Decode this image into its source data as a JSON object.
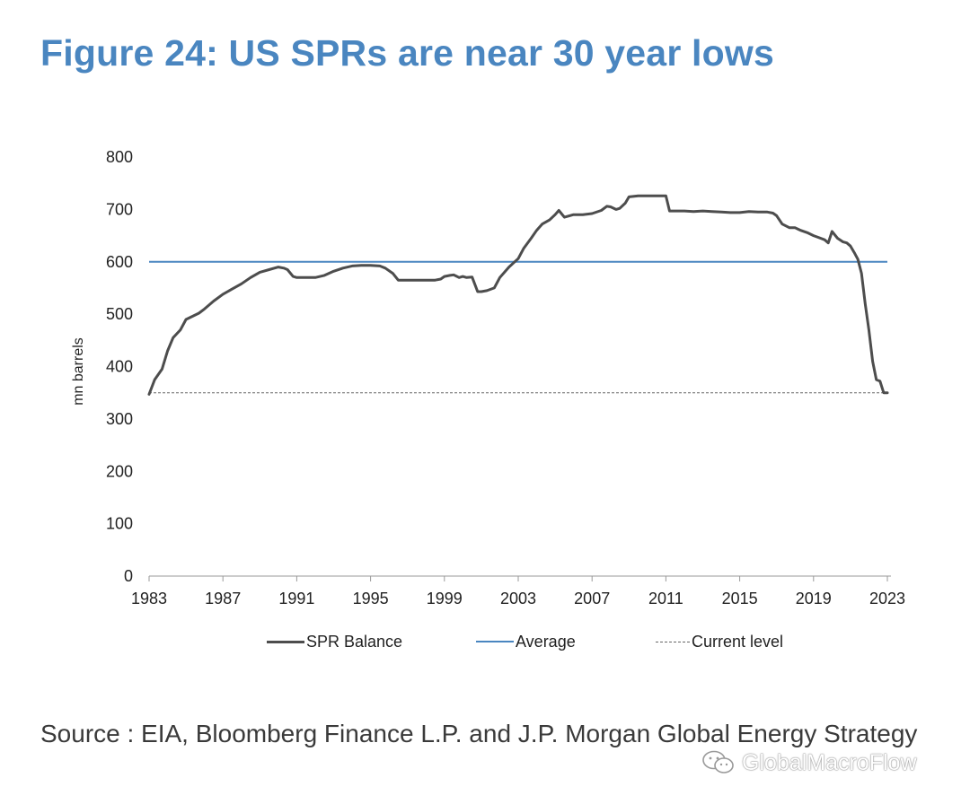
{
  "figure": {
    "title": "Figure 24: US SPRs are near 30 year lows",
    "source": "Source : EIA, Bloomberg Finance L.P. and J.P. Morgan Global Energy Strategy",
    "watermark": "GlobalMacroFlow"
  },
  "colors": {
    "title": "#4a86c0",
    "spr_line": "#4d4d4d",
    "average_line": "#4a86c0",
    "current_line": "#666666"
  },
  "legend": {
    "spr": "SPR Balance",
    "average": "Average",
    "current": "Current level"
  },
  "chart_data": {
    "type": "line",
    "title": "",
    "xlabel": "",
    "ylabel": "mn barrels",
    "xlim": [
      1983,
      2023
    ],
    "ylim": [
      0,
      800
    ],
    "x_ticks": [
      1983,
      1987,
      1991,
      1995,
      1999,
      2003,
      2007,
      2011,
      2015,
      2019,
      2023
    ],
    "y_ticks": [
      0,
      100,
      200,
      300,
      400,
      500,
      600,
      700,
      800
    ],
    "grid": false,
    "legend_position": "bottom",
    "series": [
      {
        "name": "SPR Balance",
        "style": "solid",
        "x": [
          1983,
          1983.3,
          1983.7,
          1984,
          1984.3,
          1984.7,
          1985,
          1985.3,
          1985.7,
          1986,
          1986.5,
          1987,
          1987.5,
          1988,
          1988.5,
          1989,
          1989.5,
          1990,
          1990.3,
          1990.5,
          1990.8,
          1991,
          1991.5,
          1992,
          1992.5,
          1993,
          1993.5,
          1994,
          1994.5,
          1995,
          1995.5,
          1995.8,
          1996.2,
          1996.5,
          1997,
          1997.5,
          1998,
          1998.5,
          1998.8,
          1999,
          1999.3,
          1999.5,
          1999.8,
          2000,
          2000.2,
          2000.5,
          2000.8,
          2001,
          2001.3,
          2001.7,
          2002,
          2002.5,
          2003,
          2003.3,
          2003.7,
          2004,
          2004.3,
          2004.7,
          2005,
          2005.2,
          2005.5,
          2006,
          2006.5,
          2007,
          2007.5,
          2007.8,
          2008,
          2008.3,
          2008.5,
          2008.8,
          2009,
          2009.5,
          2010,
          2010.5,
          2011,
          2011.2,
          2011.5,
          2012,
          2012.5,
          2013,
          2013.5,
          2014,
          2014.5,
          2015,
          2015.5,
          2016,
          2016.5,
          2016.8,
          2017,
          2017.3,
          2017.7,
          2018,
          2018.3,
          2018.7,
          2019,
          2019.3,
          2019.6,
          2019.8,
          2020,
          2020.3,
          2020.6,
          2020.8,
          2021,
          2021.2,
          2021.4,
          2021.6,
          2021.8,
          2022,
          2022.2,
          2022.4,
          2022.6,
          2022.8,
          2023
        ],
        "y": [
          347,
          375,
          395,
          430,
          455,
          470,
          490,
          495,
          502,
          510,
          525,
          538,
          548,
          558,
          570,
          580,
          585,
          590,
          588,
          585,
          572,
          570,
          570,
          570,
          574,
          582,
          588,
          592,
          593,
          593,
          592,
          588,
          578,
          565,
          565,
          565,
          565,
          565,
          567,
          572,
          574,
          575,
          570,
          572,
          570,
          571,
          543,
          543,
          545,
          550,
          570,
          590,
          606,
          626,
          645,
          660,
          672,
          680,
          690,
          698,
          685,
          690,
          690,
          692,
          698,
          706,
          705,
          700,
          702,
          712,
          724,
          726,
          726,
          726,
          726,
          697,
          697,
          697,
          696,
          697,
          696,
          695,
          694,
          694,
          696,
          695,
          695,
          693,
          688,
          672,
          665,
          665,
          660,
          655,
          650,
          646,
          642,
          636,
          658,
          645,
          638,
          636,
          630,
          618,
          605,
          578,
          520,
          470,
          410,
          375,
          372,
          350,
          350
        ]
      },
      {
        "name": "Average",
        "style": "solid",
        "x": [
          1983,
          2023
        ],
        "y": [
          600,
          600
        ]
      },
      {
        "name": "Current level",
        "style": "dashed",
        "x": [
          1983,
          2023
        ],
        "y": [
          350,
          350
        ]
      }
    ]
  }
}
